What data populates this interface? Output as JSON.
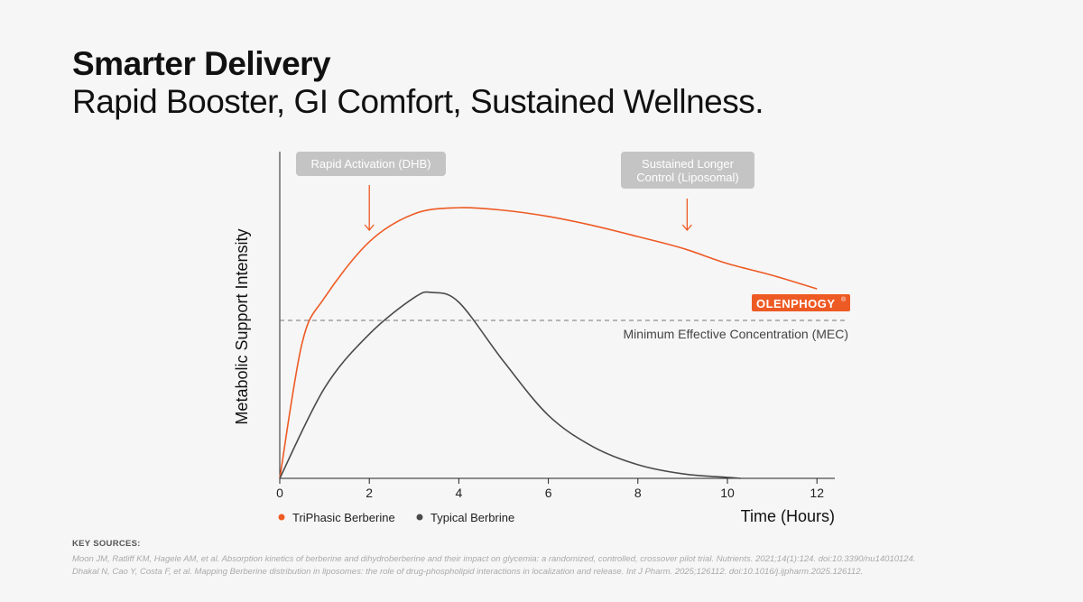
{
  "header": {
    "title": "Smarter Delivery",
    "subtitle": "Rapid Booster, GI Comfort, Sustained Wellness."
  },
  "colors": {
    "orange": "#ee5a24",
    "gray": "#4a4a4a",
    "callout": "#c4c4c4"
  },
  "chart_data": {
    "type": "line",
    "xlabel": "Time (Hours)",
    "ylabel": "Metabolic Support Intensity",
    "xlim": [
      0,
      12.4
    ],
    "ylim": [
      0,
      100
    ],
    "xticks": [
      0,
      2,
      4,
      6,
      8,
      10,
      12
    ],
    "series": [
      {
        "name": "TriPhasic Berberine",
        "color": "#ee5a24",
        "x": [
          0,
          0.5,
          1,
          2,
          3,
          4,
          5,
          6,
          7,
          8,
          9,
          10,
          11,
          12
        ],
        "y": [
          0,
          41.7,
          55.6,
          72.8,
          81.4,
          83.3,
          82.5,
          80.6,
          77.8,
          74.4,
          70.8,
          66.1,
          62.5,
          58.3
        ]
      },
      {
        "name": "Typical Berbrine",
        "color": "#4a4a4a",
        "x": [
          0,
          1,
          2,
          3,
          3.4,
          4,
          5,
          6,
          7,
          8,
          9,
          10,
          10.3
        ],
        "y": [
          0,
          27.8,
          44.4,
          55.6,
          57.2,
          54.2,
          36,
          19.4,
          9.7,
          4.2,
          1.4,
          0.3,
          0
        ]
      }
    ],
    "mec": {
      "value": 48.6,
      "label": "Minimum Effective Concentration (MEC)"
    },
    "annotations": [
      {
        "text": [
          "Rapid Activation (DHB)"
        ],
        "x": 2
      },
      {
        "text": [
          "Sustained Longer",
          "Control (Liposomal)"
        ],
        "x": 9.1
      }
    ],
    "badge": {
      "text": "OLENPHOGY",
      "mark": "®"
    },
    "legend": "bottom-left"
  },
  "sources": {
    "heading": "KEY SOURCES:",
    "items": [
      "Moon JM, Ratliff KM, Hagele AM, et al. Absorption kinetics of berberine and dihydroberberine and their impact on glycemia: a randomized, controlled, crossover pilot trial. Nutrients. 2021;14(1):124. doi:10.3390/nu14010124.",
      "Dhakal N, Cao Y, Costa F, et al. Mapping Berberine distribution in liposomes: the role of drug-phospholipid interactions in localization and release. Int J Pharm. 2025;126112. doi:10.1016/j.ijpharm.2025.126112."
    ]
  }
}
